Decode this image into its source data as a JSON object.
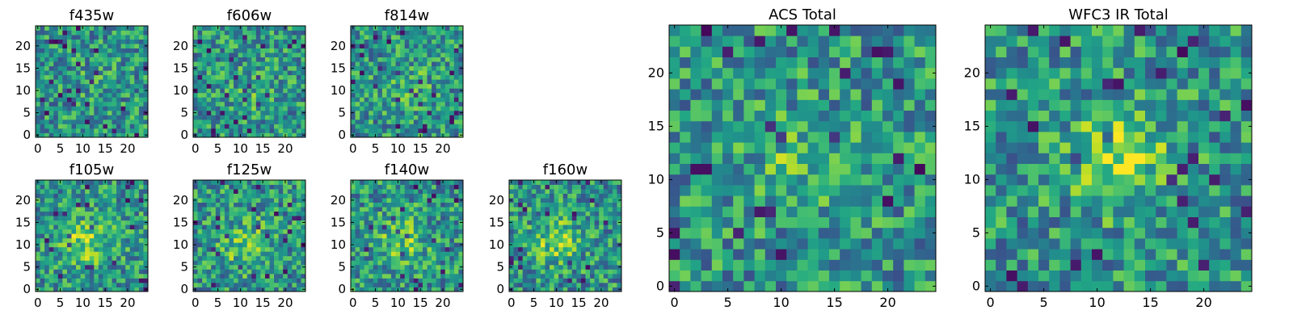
{
  "chart_data": [
    {
      "type": "heatmap",
      "title": "f435w",
      "xticks": [
        0,
        5,
        10,
        15,
        20
      ],
      "yticks": [
        0,
        5,
        10,
        15,
        20
      ],
      "xlim": [
        -0.5,
        24.5
      ],
      "ylim": [
        -0.5,
        24.5
      ],
      "grid_size": 25,
      "colormap": "viridis"
    },
    {
      "type": "heatmap",
      "title": "f606w",
      "xticks": [
        0,
        5,
        10,
        15,
        20
      ],
      "yticks": [
        0,
        5,
        10,
        15,
        20
      ],
      "xlim": [
        -0.5,
        24.5
      ],
      "ylim": [
        -0.5,
        24.5
      ],
      "grid_size": 25,
      "colormap": "viridis"
    },
    {
      "type": "heatmap",
      "title": "f814w",
      "xticks": [
        0,
        5,
        10,
        15,
        20
      ],
      "yticks": [
        0,
        5,
        10,
        15,
        20
      ],
      "xlim": [
        -0.5,
        24.5
      ],
      "ylim": [
        -0.5,
        24.5
      ],
      "grid_size": 25,
      "colormap": "viridis"
    },
    {
      "type": "heatmap",
      "title": "f105w",
      "xticks": [
        0,
        5,
        10,
        15,
        20
      ],
      "yticks": [
        0,
        5,
        10,
        15,
        20
      ],
      "xlim": [
        -0.5,
        24.5
      ],
      "ylim": [
        -0.5,
        24.5
      ],
      "grid_size": 25,
      "colormap": "viridis"
    },
    {
      "type": "heatmap",
      "title": "f125w",
      "xticks": [
        0,
        5,
        10,
        15,
        20
      ],
      "yticks": [
        0,
        5,
        10,
        15,
        20
      ],
      "xlim": [
        -0.5,
        24.5
      ],
      "ylim": [
        -0.5,
        24.5
      ],
      "grid_size": 25,
      "colormap": "viridis"
    },
    {
      "type": "heatmap",
      "title": "f140w",
      "xticks": [
        0,
        5,
        10,
        15,
        20
      ],
      "yticks": [
        0,
        5,
        10,
        15,
        20
      ],
      "xlim": [
        -0.5,
        24.5
      ],
      "ylim": [
        -0.5,
        24.5
      ],
      "grid_size": 25,
      "colormap": "viridis"
    },
    {
      "type": "heatmap",
      "title": "f160w",
      "xticks": [
        0,
        5,
        10,
        15,
        20
      ],
      "yticks": [
        0,
        5,
        10,
        15,
        20
      ],
      "xlim": [
        -0.5,
        24.5
      ],
      "ylim": [
        -0.5,
        24.5
      ],
      "grid_size": 25,
      "colormap": "viridis"
    },
    {
      "type": "heatmap",
      "title": "ACS Total",
      "xticks": [
        0,
        5,
        10,
        15,
        20
      ],
      "yticks": [
        0,
        5,
        10,
        15,
        20
      ],
      "xlim": [
        -0.5,
        24.5
      ],
      "ylim": [
        -0.5,
        24.5
      ],
      "grid_size": 25,
      "colormap": "viridis"
    },
    {
      "type": "heatmap",
      "title": "WFC3 IR Total",
      "xticks": [
        0,
        5,
        10,
        15,
        20
      ],
      "yticks": [
        0,
        5,
        10,
        15,
        20
      ],
      "xlim": [
        -0.5,
        24.5
      ],
      "ylim": [
        -0.5,
        24.5
      ],
      "grid_size": 25,
      "colormap": "viridis"
    }
  ]
}
